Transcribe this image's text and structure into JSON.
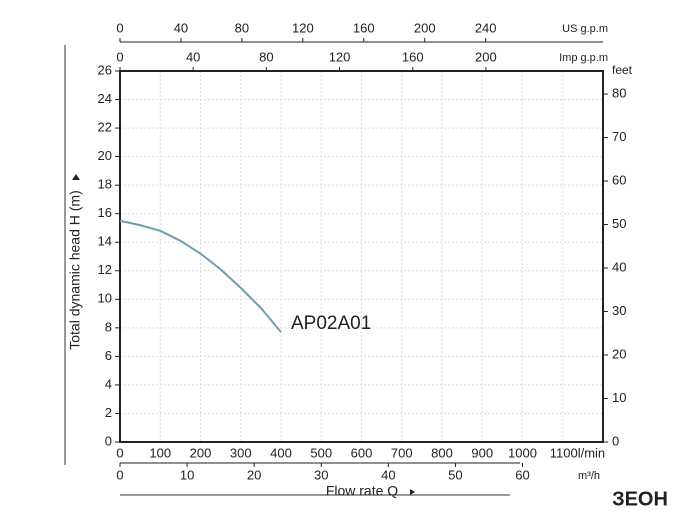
{
  "chart_data": {
    "type": "line",
    "xlabel": "Flow rate Q",
    "ylabel": "Total dynamic head H (m)",
    "xlim": [
      0,
      1200
    ],
    "xticks": [
      0,
      100,
      200,
      300,
      400,
      500,
      600,
      700,
      800,
      900,
      1000,
      {
        "value": 1100,
        "label": "1100l/min"
      }
    ],
    "ylim": [
      0,
      26
    ],
    "yticks": [
      0,
      2,
      4,
      6,
      8,
      10,
      12,
      14,
      16,
      18,
      20,
      22,
      24,
      26
    ],
    "y2label": "feet",
    "y2lim": [
      0,
      85.3
    ],
    "y2ticks": [
      0,
      10,
      20,
      30,
      40,
      50,
      60,
      70,
      80
    ],
    "grid": true,
    "bottom_axis2": {
      "label": "m³/h",
      "xlim": [
        0,
        72
      ],
      "xticks": [
        0,
        10,
        20,
        30,
        40,
        50,
        60
      ]
    },
    "top_axes": [
      {
        "label": "US g.p.m",
        "xlim": [
          0,
          317
        ],
        "xticks": [
          0,
          40,
          80,
          120,
          160,
          200,
          240
        ]
      },
      {
        "label": "Imp g.p.m",
        "xlim": [
          0,
          264
        ],
        "xticks": [
          0,
          40,
          80,
          120,
          160,
          200
        ]
      }
    ],
    "series": [
      {
        "name": "AP02A01",
        "color": "#6a9fb5",
        "x": [
          0,
          50,
          100,
          150,
          200,
          250,
          300,
          350,
          400
        ],
        "values": [
          15.5,
          15.2,
          14.8,
          14.1,
          13.2,
          12.1,
          10.8,
          9.4,
          7.7
        ]
      }
    ],
    "logo": "ЗЕОН"
  }
}
